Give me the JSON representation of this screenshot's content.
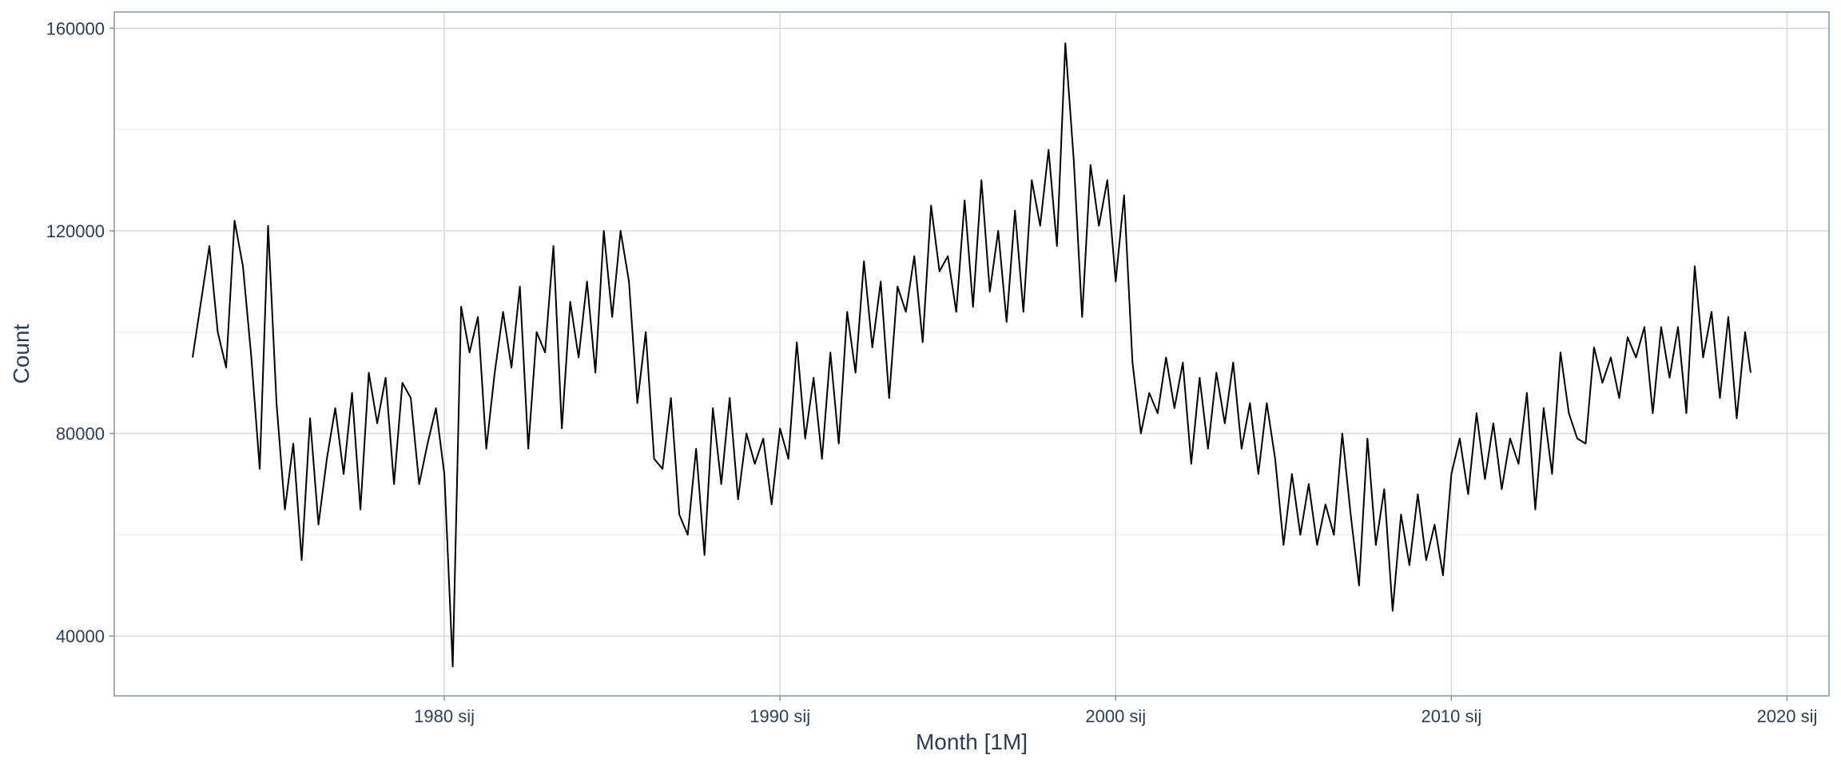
{
  "chart_data": {
    "type": "line",
    "x_label": "Month [1M]",
    "y_label": "Count",
    "x": [
      "1972-07",
      "1972-10",
      "1973-01",
      "1973-04",
      "1973-07",
      "1973-10",
      "1974-01",
      "1974-04",
      "1974-07",
      "1974-10",
      "1975-01",
      "1975-04",
      "1975-07",
      "1975-10",
      "1976-01",
      "1976-04",
      "1976-07",
      "1976-10",
      "1977-01",
      "1977-04",
      "1977-07",
      "1977-10",
      "1978-01",
      "1978-04",
      "1978-07",
      "1978-10",
      "1979-01",
      "1979-04",
      "1979-07",
      "1979-10",
      "1980-01",
      "1980-04",
      "1980-07",
      "1980-10",
      "1981-01",
      "1981-04",
      "1981-07",
      "1981-10",
      "1982-01",
      "1982-04",
      "1982-07",
      "1982-10",
      "1983-01",
      "1983-04",
      "1983-07",
      "1983-10",
      "1984-01",
      "1984-04",
      "1984-07",
      "1984-10",
      "1985-01",
      "1985-04",
      "1985-07",
      "1985-10",
      "1986-01",
      "1986-04",
      "1986-07",
      "1986-10",
      "1987-01",
      "1987-04",
      "1987-07",
      "1987-10",
      "1988-01",
      "1988-04",
      "1988-07",
      "1988-10",
      "1989-01",
      "1989-04",
      "1989-07",
      "1989-10",
      "1990-01",
      "1990-04",
      "1990-07",
      "1990-10",
      "1991-01",
      "1991-04",
      "1991-07",
      "1991-10",
      "1992-01",
      "1992-04",
      "1992-07",
      "1992-10",
      "1993-01",
      "1993-04",
      "1993-07",
      "1993-10",
      "1994-01",
      "1994-04",
      "1994-07",
      "1994-10",
      "1995-01",
      "1995-04",
      "1995-07",
      "1995-10",
      "1996-01",
      "1996-04",
      "1996-07",
      "1996-10",
      "1997-01",
      "1997-04",
      "1997-07",
      "1997-10",
      "1998-01",
      "1998-04",
      "1998-07",
      "1998-10",
      "1999-01",
      "1999-04",
      "1999-07",
      "1999-10",
      "2000-01",
      "2000-04",
      "2000-07",
      "2000-10",
      "2001-01",
      "2001-04",
      "2001-07",
      "2001-10",
      "2002-01",
      "2002-04",
      "2002-07",
      "2002-10",
      "2003-01",
      "2003-04",
      "2003-07",
      "2003-10",
      "2004-01",
      "2004-04",
      "2004-07",
      "2004-10",
      "2005-01",
      "2005-04",
      "2005-07",
      "2005-10",
      "2006-01",
      "2006-04",
      "2006-07",
      "2006-10",
      "2007-01",
      "2007-04",
      "2007-07",
      "2007-10",
      "2008-01",
      "2008-04",
      "2008-07",
      "2008-10",
      "2009-01",
      "2009-04",
      "2009-07",
      "2009-10",
      "2010-01",
      "2010-04",
      "2010-07",
      "2010-10",
      "2011-01",
      "2011-04",
      "2011-07",
      "2011-10",
      "2012-01",
      "2012-04",
      "2012-07",
      "2012-10",
      "2013-01",
      "2013-04",
      "2013-07",
      "2013-10",
      "2014-01",
      "2014-04",
      "2014-07",
      "2014-10",
      "2015-01",
      "2015-04",
      "2015-07",
      "2015-10",
      "2016-01",
      "2016-04",
      "2016-07",
      "2016-10",
      "2017-01",
      "2017-04",
      "2017-07",
      "2017-10",
      "2018-01",
      "2018-04",
      "2018-07",
      "2018-10",
      "2018-12"
    ],
    "series": [
      {
        "name": "Count",
        "color": "#000000",
        "values": [
          95000,
          106000,
          117000,
          100000,
          93000,
          122000,
          113000,
          95000,
          73000,
          121000,
          86000,
          65000,
          78000,
          55000,
          83000,
          62000,
          75000,
          85000,
          72000,
          88000,
          65000,
          92000,
          82000,
          91000,
          70000,
          90000,
          87000,
          70000,
          78000,
          85000,
          72000,
          34000,
          105000,
          96000,
          103000,
          77000,
          92000,
          104000,
          93000,
          109000,
          77000,
          100000,
          96000,
          117000,
          81000,
          106000,
          95000,
          110000,
          92000,
          120000,
          103000,
          120000,
          110000,
          86000,
          100000,
          75000,
          73000,
          87000,
          64000,
          60000,
          77000,
          56000,
          85000,
          70000,
          87000,
          67000,
          80000,
          74000,
          79000,
          66000,
          81000,
          75000,
          98000,
          79000,
          91000,
          75000,
          96000,
          78000,
          104000,
          92000,
          114000,
          97000,
          110000,
          87000,
          109000,
          104000,
          115000,
          98000,
          125000,
          112000,
          115000,
          104000,
          126000,
          105000,
          130000,
          108000,
          120000,
          102000,
          124000,
          104000,
          130000,
          121000,
          136000,
          117000,
          157000,
          134000,
          103000,
          133000,
          121000,
          130000,
          110000,
          127000,
          94000,
          80000,
          88000,
          84000,
          95000,
          85000,
          94000,
          74000,
          91000,
          77000,
          92000,
          82000,
          94000,
          77000,
          86000,
          72000,
          86000,
          75000,
          58000,
          72000,
          60000,
          70000,
          58000,
          66000,
          60000,
          80000,
          64000,
          50000,
          79000,
          58000,
          69000,
          45000,
          64000,
          54000,
          68000,
          55000,
          62000,
          52000,
          72000,
          79000,
          68000,
          84000,
          71000,
          82000,
          69000,
          79000,
          74000,
          88000,
          65000,
          85000,
          72000,
          96000,
          84000,
          79000,
          78000,
          97000,
          90000,
          95000,
          87000,
          99000,
          95000,
          101000,
          84000,
          101000,
          91000,
          101000,
          84000,
          113000,
          95000,
          104000,
          87000,
          103000,
          83000,
          100000,
          92000
        ]
      }
    ],
    "xlim": [
      "1970-03",
      "2021-04"
    ],
    "xticks": [
      {
        "value": "1980-01",
        "label": "1980 sij"
      },
      {
        "value": "1990-01",
        "label": "1990 sij"
      },
      {
        "value": "2000-01",
        "label": "2000 sij"
      },
      {
        "value": "2010-01",
        "label": "2010 sij"
      },
      {
        "value": "2020-01",
        "label": "2020 sij"
      }
    ],
    "ylim": [
      28200,
      163200
    ],
    "yticks": [
      40000,
      80000,
      120000,
      160000
    ],
    "yminor": [
      60000,
      100000,
      140000
    ],
    "grid": true
  }
}
